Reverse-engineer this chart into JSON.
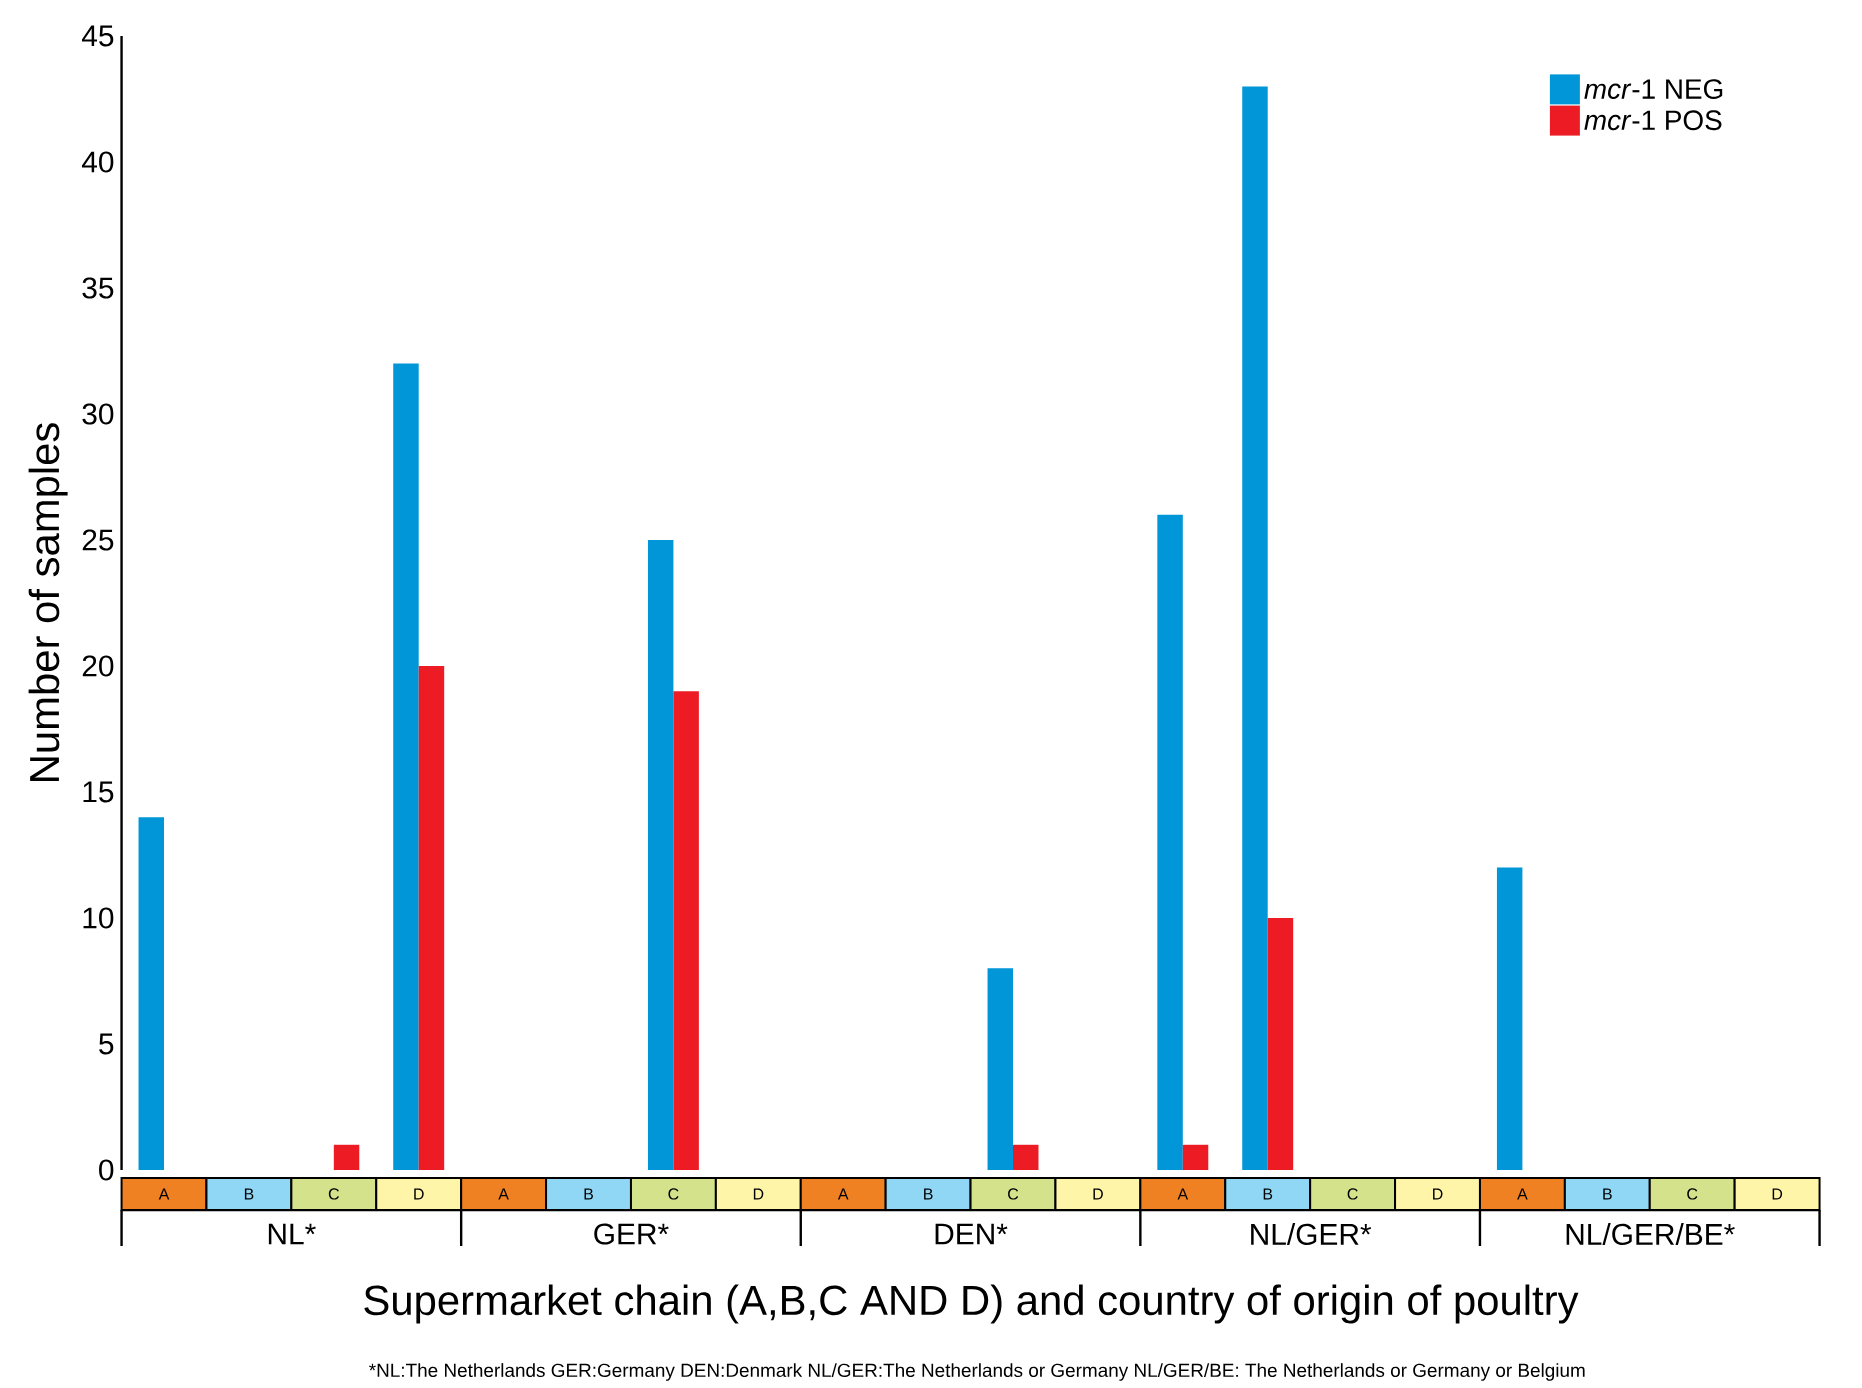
{
  "chart_data": {
    "type": "bar",
    "xlabel": "Supermarket chain (A,B,C AND D) and country of origin of poultry",
    "ylabel": "Number of samples",
    "categories": [
      "A",
      "B",
      "C",
      "D",
      "A",
      "B",
      "C",
      "D",
      "A",
      "B",
      "C",
      "D",
      "A",
      "B",
      "C",
      "D",
      "A",
      "B",
      "C",
      "D"
    ],
    "series": [
      {
        "name": "*mcr*-1 NEG",
        "color": "#0096d8",
        "values": [
          14,
          0,
          0,
          32,
          0,
          0,
          25,
          0,
          0,
          0,
          8,
          0,
          26,
          43,
          0,
          0,
          12,
          0,
          0,
          0
        ]
      },
      {
        "name": "*mcr*-1 POS",
        "color": "#ed1c24",
        "values": [
          0,
          0,
          1,
          20,
          0,
          0,
          19,
          0,
          0,
          0,
          1,
          0,
          1,
          10,
          0,
          0,
          0,
          0,
          0,
          0
        ]
      }
    ],
    "ylim": [
      0,
      45
    ],
    "yticks": [
      0,
      5,
      10,
      15,
      20,
      25,
      30,
      35,
      40,
      45
    ],
    "legend": "top right",
    "annotations": [
      "NL*",
      "GER*",
      "DEN*",
      "NL/GER*",
      "NL/GER/BE*",
      "*NL:The Netherlands  GER:Germany  DEN:Denmark NL/GER:The Netherlands or Germany NL/GER/BE: The Netherlands or Germany or Belgium"
    ]
  }
}
